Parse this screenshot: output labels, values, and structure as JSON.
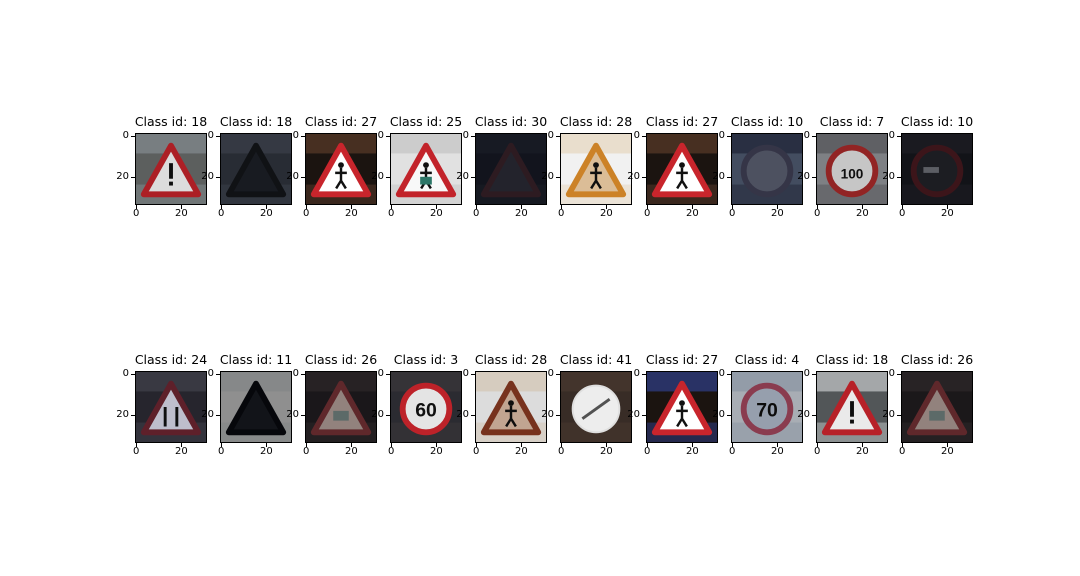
{
  "title_prefix": "Class id:",
  "tick_labels": {
    "y": [
      "0",
      "20"
    ],
    "x": [
      "0",
      "20"
    ]
  },
  "rows": [
    [
      {
        "class_id": "18",
        "sign": "triangle-exclaim",
        "bg": "#6b6f6e",
        "bg2": "#9aa3a7",
        "bright": 0.75
      },
      {
        "class_id": "18",
        "sign": "triangle-dark",
        "bg": "#3f4552",
        "bg2": "#5c6373",
        "bright": 0.35
      },
      {
        "class_id": "27",
        "sign": "triangle-ped",
        "bg": "#1b1410",
        "bg2": "#5a3a2a",
        "bright": 1.0
      },
      {
        "class_id": "25",
        "sign": "triangle-work",
        "bg": "#e8e8e8",
        "bg2": "#c9c9c9",
        "bright": 0.95
      },
      {
        "class_id": "30",
        "sign": "triangle-faint",
        "bg": "#1e2230",
        "bg2": "#2a2f3e",
        "bright": 0.3
      },
      {
        "class_id": "28",
        "sign": "triangle-kids-orange",
        "bg": "#ffffff",
        "bg2": "#f3e3c9",
        "bright": 0.9
      },
      {
        "class_id": "27",
        "sign": "triangle-ped",
        "bg": "#1b1410",
        "bg2": "#5a3a2a",
        "bright": 1.0
      },
      {
        "class_id": "10",
        "sign": "circle-faint",
        "bg": "#5d6a85",
        "bg2": "#2b3248",
        "bright": 0.5
      },
      {
        "class_id": "7",
        "sign": "circle-100",
        "bg": "#8a8c90",
        "bg2": "#5a5a5e",
        "bright": 0.85
      },
      {
        "class_id": "10",
        "sign": "circle-dark",
        "bg": "#1c1d24",
        "bg2": "#2c2e38",
        "bright": 0.4
      }
    ],
    [
      {
        "class_id": "24",
        "sign": "triangle-narrow",
        "bg": "#2b2a33",
        "bg2": "#4a4a55",
        "bright": 0.8
      },
      {
        "class_id": "11",
        "sign": "triangle-black",
        "bg": "#ffffff",
        "bg2": "#e8eef0",
        "bright": 0.2
      },
      {
        "class_id": "26",
        "sign": "triangle-faint2",
        "bg": "#221e22",
        "bg2": "#3a3234",
        "bright": 0.6
      },
      {
        "class_id": "3",
        "sign": "circle-60",
        "bg": "#2e2e34",
        "bg2": "#3e3a3e",
        "bright": 0.9
      },
      {
        "class_id": "28",
        "sign": "triangle-kids-brown",
        "bg": "#ffffff",
        "bg2": "#f6e6d0",
        "bright": 0.75
      },
      {
        "class_id": "41",
        "sign": "circle-end",
        "bg": "#3a2e28",
        "bg2": "#4a3a30",
        "bright": 0.95
      },
      {
        "class_id": "27",
        "sign": "triangle-ped",
        "bg": "#1b1410",
        "bg2": "#2f3e8a",
        "bright": 1.0
      },
      {
        "class_id": "4",
        "sign": "circle-70",
        "bg": "#dfe6f0",
        "bg2": "#b8c6d8",
        "bright": 0.55
      },
      {
        "class_id": "18",
        "sign": "triangle-exclaim",
        "bg": "#5a5e60",
        "bg2": "#d8dde0",
        "bright": 0.85
      },
      {
        "class_id": "26",
        "sign": "triangle-faint2",
        "bg": "#231f22",
        "bg2": "#3c3336",
        "bright": 0.6
      }
    ]
  ]
}
